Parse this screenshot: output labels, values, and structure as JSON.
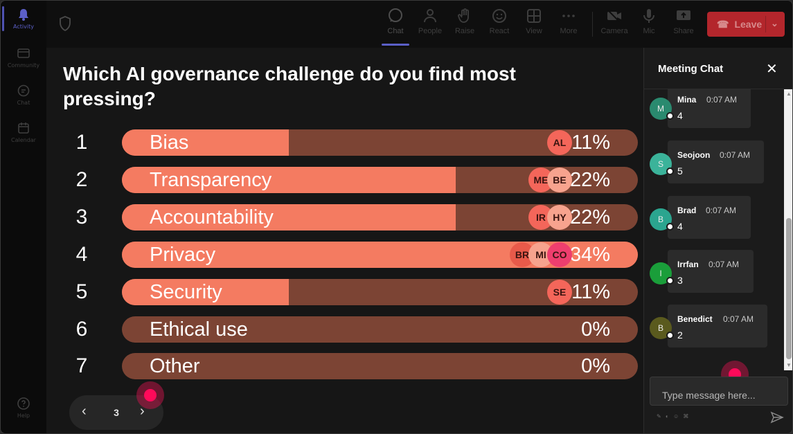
{
  "rail": {
    "items": [
      {
        "label": "Activity",
        "icon": "bell-icon",
        "active": true
      },
      {
        "label": "Community",
        "icon": "community-icon"
      },
      {
        "label": "Chat",
        "icon": "chat-icon"
      },
      {
        "label": "Calendar",
        "icon": "calendar-icon"
      }
    ],
    "help_label": "Help"
  },
  "toolbar": {
    "buttons": [
      {
        "label": "Chat",
        "icon": "chat-icon",
        "active": true
      },
      {
        "label": "People",
        "icon": "people-icon"
      },
      {
        "label": "Raise",
        "icon": "raise-hand-icon"
      },
      {
        "label": "React",
        "icon": "react-icon"
      },
      {
        "label": "View",
        "icon": "view-grid-icon"
      },
      {
        "label": "More",
        "icon": "more-icon"
      },
      {
        "label": "Camera",
        "icon": "camera-icon"
      },
      {
        "label": "Mic",
        "icon": "mic-icon"
      },
      {
        "label": "Share",
        "icon": "share-icon"
      }
    ],
    "leave_label": "Leave"
  },
  "poll": {
    "question": "Which AI governance challenge do you find most pressing?",
    "options": [
      {
        "num": "1",
        "label": "Bias",
        "percent": "11%",
        "fraction": 0.11,
        "voters": [
          "AL"
        ]
      },
      {
        "num": "2",
        "label": "Transparency",
        "percent": "22%",
        "fraction": 0.22,
        "voters": [
          "ME",
          "BE"
        ]
      },
      {
        "num": "3",
        "label": "Accountability",
        "percent": "22%",
        "fraction": 0.22,
        "voters": [
          "IR",
          "HY"
        ]
      },
      {
        "num": "4",
        "label": "Privacy",
        "percent": "34%",
        "fraction": 0.34,
        "voters": [
          "BR",
          "MI",
          "CO"
        ]
      },
      {
        "num": "5",
        "label": "Security",
        "percent": "11%",
        "fraction": 0.11,
        "voters": [
          "SE"
        ]
      },
      {
        "num": "6",
        "label": "Ethical use",
        "percent": "0%",
        "fraction": 0,
        "voters": []
      },
      {
        "num": "7",
        "label": "Other",
        "percent": "0%",
        "fraction": 0,
        "voters": []
      }
    ],
    "page": "3"
  },
  "chat": {
    "title": "Meeting Chat",
    "messages": [
      {
        "initial": "M",
        "name": "Mina",
        "time": "0:07 AM",
        "text": "4",
        "color": "#2a8a6f"
      },
      {
        "initial": "S",
        "name": "Seojoon",
        "time": "0:07 AM",
        "text": "5",
        "color": "#3bb39a"
      },
      {
        "initial": "B",
        "name": "Brad",
        "time": "0:07 AM",
        "text": "4",
        "color": "#2ba58f"
      },
      {
        "initial": "I",
        "name": "Irrfan",
        "time": "0:07 AM",
        "text": "3",
        "color": "#1a9e3a"
      },
      {
        "initial": "B",
        "name": "Benedict",
        "time": "0:07 AM",
        "text": "2",
        "color": "#5a5a1e"
      }
    ],
    "input_placeholder": "Type message here..."
  },
  "colors": {
    "bar_fill": "#f47b61",
    "bar_track": "#7c4434",
    "leave": "#b3262c",
    "accent": "#5b5fc7",
    "cursor": "#ff0a5a"
  }
}
